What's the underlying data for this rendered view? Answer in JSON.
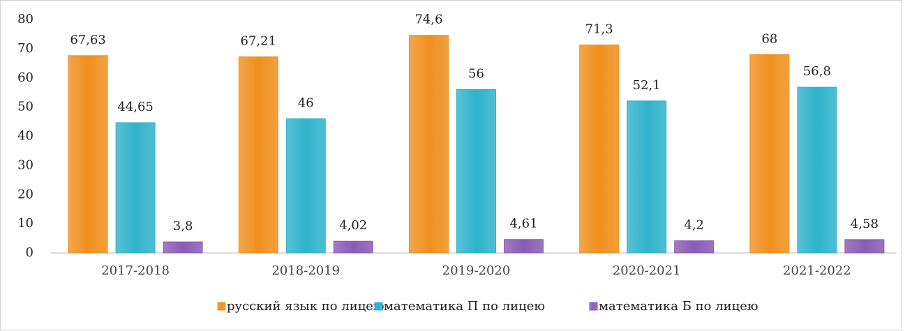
{
  "chart_data": {
    "type": "bar",
    "categories": [
      "2017-2018",
      "2018-2019",
      "2019-2020",
      "2020-2021",
      "2021-2022"
    ],
    "series": [
      {
        "name": "русский язык по лицею",
        "color": "#f0901e",
        "values": [
          67.63,
          67.21,
          74.6,
          71.3,
          68
        ],
        "value_labels": [
          "67,63",
          "67,21",
          "74,6",
          "71,3",
          "68"
        ]
      },
      {
        "name": "математика П по лицею",
        "color": "#2fb3cc",
        "values": [
          44.65,
          46,
          56,
          52.1,
          56.8
        ],
        "value_labels": [
          "44,65",
          "46",
          "56",
          "52,1",
          "56,8"
        ]
      },
      {
        "name": "математика Б по лицею",
        "color": "#8a5cb5",
        "values": [
          3.8,
          4.02,
          4.61,
          4.2,
          4.58
        ],
        "value_labels": [
          "3,8",
          "4,02",
          "4,61",
          "4,2",
          "4,58"
        ]
      }
    ],
    "ylim": [
      0,
      80
    ],
    "yticks": [
      0,
      10,
      20,
      30,
      40,
      50,
      60,
      70,
      80
    ],
    "grid": false,
    "legend": "bottom"
  }
}
